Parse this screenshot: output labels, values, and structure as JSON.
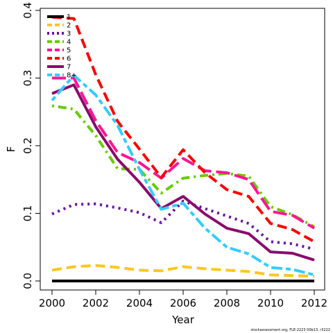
{
  "chart_data": {
    "type": "line",
    "title": "",
    "xlabel": "Year",
    "ylabel": "F",
    "xlim": [
      2000,
      2012
    ],
    "ylim": [
      0,
      0.4
    ],
    "x_ticks": [
      2000,
      2002,
      2004,
      2006,
      2008,
      2010,
      2012
    ],
    "y_ticks": [
      0.0,
      0.1,
      0.2,
      0.3,
      0.4
    ],
    "y_tick_labels": [
      "0.0",
      "0.1",
      "0.2",
      "0.3",
      "0.4"
    ],
    "grid": false,
    "legend_position": "top-left",
    "x": [
      2000,
      2001,
      2002,
      2003,
      2004,
      2005,
      2006,
      2007,
      2008,
      2009,
      2010,
      2011,
      2012
    ],
    "series": [
      {
        "name": "1",
        "color": "#000000",
        "dash": "solid",
        "values": [
          0.0,
          0.0,
          0.0,
          0.0,
          0.0,
          0.0,
          0.0,
          0.0,
          0.0,
          0.0,
          0.0,
          0.0,
          0.0
        ]
      },
      {
        "name": "2",
        "color": "#FFC61E",
        "dash": "dashed",
        "values": [
          0.016,
          0.021,
          0.023,
          0.02,
          0.016,
          0.015,
          0.021,
          0.018,
          0.016,
          0.014,
          0.009,
          0.008,
          0.007
        ]
      },
      {
        "name": "3",
        "color": "#6A0DAD",
        "dash": "dotted",
        "values": [
          0.099,
          0.113,
          0.114,
          0.108,
          0.101,
          0.086,
          0.118,
          0.107,
          0.096,
          0.085,
          0.058,
          0.055,
          0.047
        ]
      },
      {
        "name": "4",
        "color": "#66CC00",
        "dash": "dotdash",
        "values": [
          0.259,
          0.254,
          0.215,
          0.166,
          0.165,
          0.13,
          0.152,
          0.156,
          0.159,
          0.155,
          0.11,
          0.098,
          0.08
        ]
      },
      {
        "name": "5",
        "color": "#FF1493",
        "dash": "longdash",
        "values": [
          0.3,
          0.3,
          0.237,
          0.19,
          0.175,
          0.152,
          0.181,
          0.163,
          0.16,
          0.15,
          0.103,
          0.097,
          0.078
        ]
      },
      {
        "name": "6",
        "color": "#FF0000",
        "dash": "dashed",
        "values": [
          0.39,
          0.388,
          0.305,
          0.236,
          0.195,
          0.153,
          0.194,
          0.16,
          0.135,
          0.125,
          0.085,
          0.076,
          0.058
        ]
      },
      {
        "name": "7",
        "color": "#8B0A6B",
        "dash": "solid",
        "values": [
          0.277,
          0.29,
          0.228,
          0.18,
          0.146,
          0.107,
          0.125,
          0.099,
          0.078,
          0.07,
          0.043,
          0.041,
          0.031
        ]
      },
      {
        "name": "8+",
        "color": "#33CCFF",
        "dash": "twodash",
        "values": [
          0.267,
          0.304,
          0.275,
          0.23,
          0.165,
          0.106,
          0.115,
          0.078,
          0.05,
          0.04,
          0.02,
          0.017,
          0.009
        ]
      }
    ],
    "caption": "stockassessment.org, FLE-2223 00b13, r3222"
  }
}
